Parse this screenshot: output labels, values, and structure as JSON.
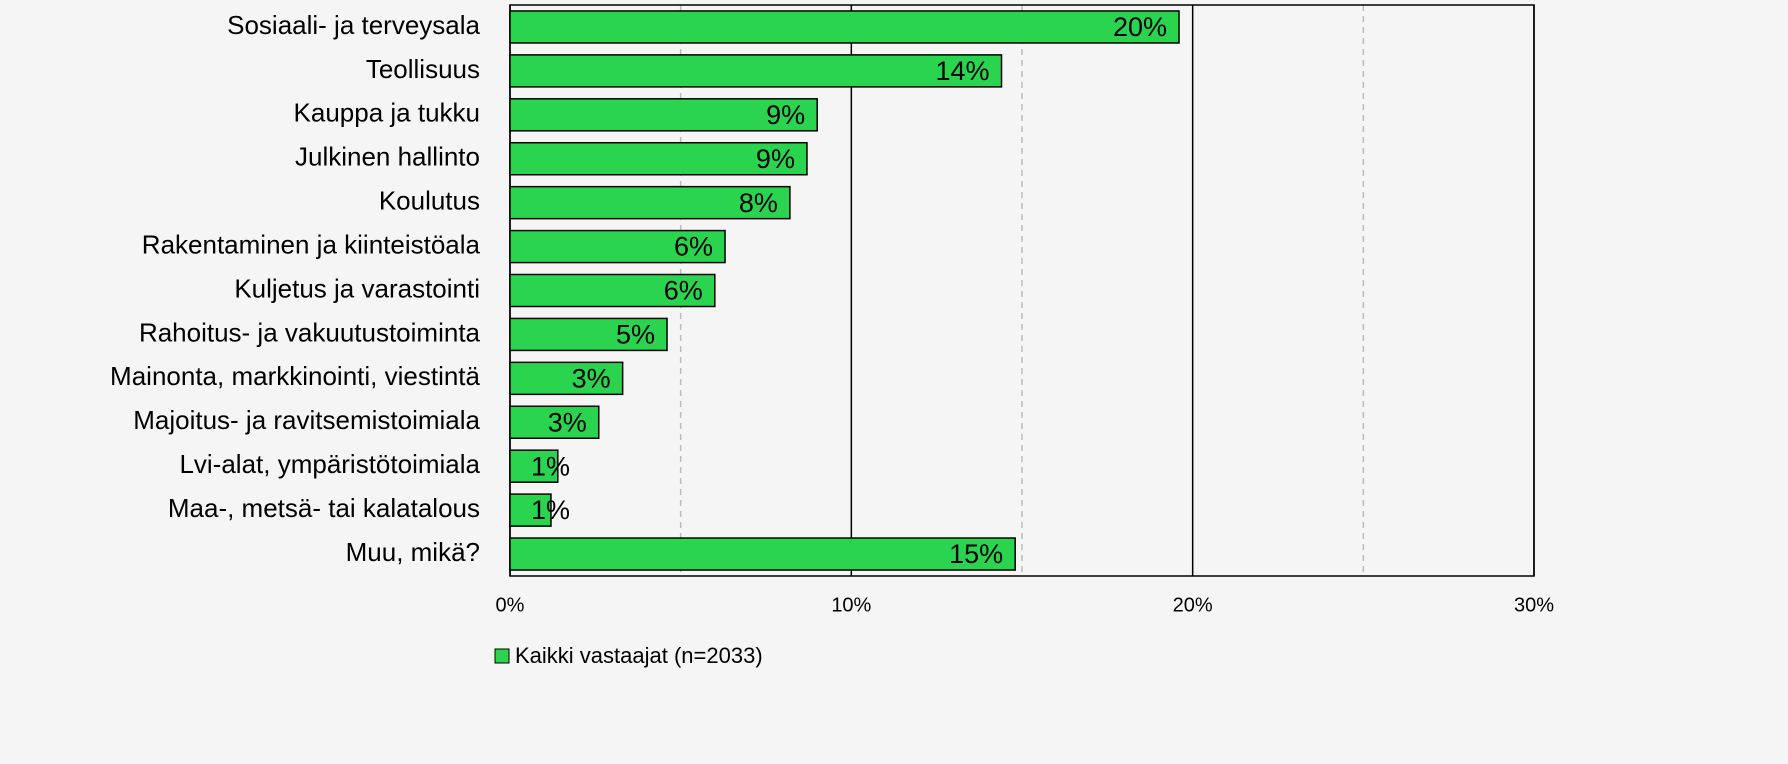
{
  "chart_data": {
    "type": "bar",
    "orientation": "horizontal",
    "categories": [
      "Sosiaali- ja terveysala",
      "Teollisuus",
      "Kauppa ja tukku",
      "Julkinen hallinto",
      "Koulutus",
      "Rakentaminen ja kiinteistöala",
      "Kuljetus ja varastointi",
      "Rahoitus- ja vakuutustoiminta",
      "Mainonta, markkinointi, viestintä",
      "Majoitus- ja ravitsemistoimiala",
      "Lvi-alat, ympäristötoimiala",
      "Maa-, metsä- tai kalatalous",
      "Muu, mikä?"
    ],
    "series": [
      {
        "name": "Kaikki vastaajat (n=2033)",
        "color": "#2ad44f",
        "values": [
          19.6,
          14.4,
          9.0,
          8.7,
          8.2,
          6.3,
          6.0,
          4.6,
          3.3,
          2.6,
          1.4,
          1.2,
          14.8
        ],
        "value_labels": [
          "20%",
          "14%",
          "9%",
          "9%",
          "8%",
          "6%",
          "6%",
          "5%",
          "3%",
          "3%",
          "1%",
          "1%",
          "15%"
        ]
      }
    ],
    "xlim": [
      0,
      30
    ],
    "xticks": [
      {
        "value": 0,
        "label": "0%"
      },
      {
        "value": 10,
        "label": "10%"
      },
      {
        "value": 20,
        "label": "20%"
      },
      {
        "value": 30,
        "label": "30%"
      }
    ],
    "xminor": [
      5,
      15,
      25
    ],
    "grid": true,
    "legend": "bottom"
  }
}
